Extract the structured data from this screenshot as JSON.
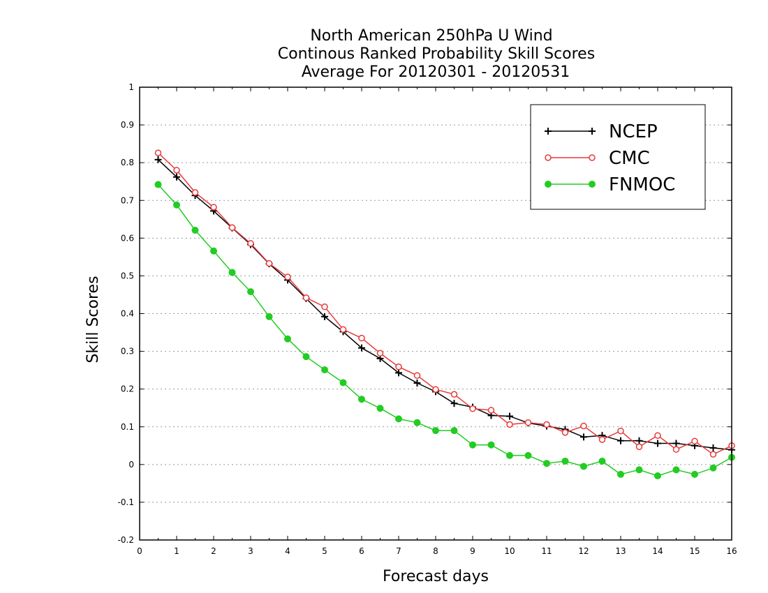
{
  "chart_data": {
    "type": "line",
    "title": [
      "North American 250hPa U Wind",
      "Continous Ranked Probability Skill Scores",
      "Average For 20120301 - 20120531"
    ],
    "xlabel": "Forecast days",
    "ylabel": "Skill Scores",
    "xlim": [
      0,
      16
    ],
    "ylim": [
      -0.2,
      1
    ],
    "xticks": [
      "0",
      "1",
      "2",
      "3",
      "4",
      "5",
      "6",
      "7",
      "8",
      "9",
      "10",
      "11",
      "12",
      "13",
      "14",
      "15",
      "16"
    ],
    "yticks": [
      "-0.2",
      "-0.1",
      "0",
      "0.1",
      "0.2",
      "0.3",
      "0.4",
      "0.5",
      "0.6",
      "0.7",
      "0.8",
      "0.9",
      "1"
    ],
    "grid": "horizontal dotted",
    "legend_position": "top-right",
    "x": [
      0.5,
      1,
      1.5,
      2,
      2.5,
      3,
      3.5,
      4,
      4.5,
      5,
      5.5,
      6,
      6.5,
      7,
      7.5,
      8,
      8.5,
      9,
      9.5,
      10,
      10.5,
      11,
      11.5,
      12,
      12.5,
      13,
      13.5,
      14,
      14.5,
      15,
      15.5,
      16
    ],
    "series": [
      {
        "name": "NCEP",
        "color": "#000000",
        "marker": "plus",
        "values": [
          0.808,
          0.762,
          0.713,
          0.672,
          0.627,
          0.583,
          0.532,
          0.489,
          0.44,
          0.392,
          0.352,
          0.309,
          0.281,
          0.243,
          0.216,
          0.193,
          0.162,
          0.152,
          0.13,
          0.128,
          0.11,
          0.102,
          0.093,
          0.073,
          0.077,
          0.063,
          0.063,
          0.056,
          0.056,
          0.05,
          0.044,
          0.039
        ]
      },
      {
        "name": "CMC",
        "color": "#e8383a",
        "marker": "open-circle",
        "values": [
          0.826,
          0.78,
          0.721,
          0.682,
          0.628,
          0.586,
          0.533,
          0.497,
          0.442,
          0.418,
          0.358,
          0.335,
          0.295,
          0.259,
          0.236,
          0.199,
          0.186,
          0.148,
          0.144,
          0.106,
          0.111,
          0.106,
          0.085,
          0.102,
          0.066,
          0.089,
          0.047,
          0.077,
          0.04,
          0.062,
          0.027,
          0.05
        ]
      },
      {
        "name": "FNMOC",
        "color": "#22cc22",
        "marker": "filled-circle",
        "values": [
          0.742,
          0.688,
          0.621,
          0.566,
          0.509,
          0.458,
          0.392,
          0.333,
          0.286,
          0.251,
          0.217,
          0.173,
          0.149,
          0.121,
          0.111,
          0.09,
          0.09,
          0.052,
          0.052,
          0.024,
          0.024,
          0.003,
          0.009,
          -0.005,
          0.009,
          -0.026,
          -0.014,
          -0.03,
          -0.014,
          -0.026,
          -0.009,
          0.019
        ]
      }
    ]
  }
}
